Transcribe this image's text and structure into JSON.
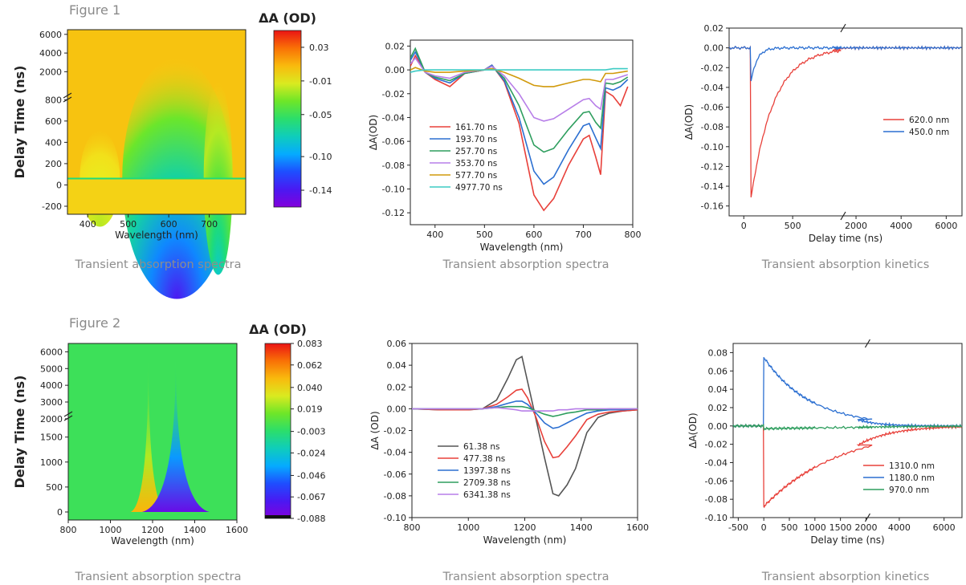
{
  "figures": [
    {
      "label": "Figure 1",
      "captions": [
        "Transient absorption spectra",
        "Transient absorption spectra",
        "Transient absorption kinetics"
      ]
    },
    {
      "label": "Figure 2",
      "captions": [
        "Transient absorption spectra",
        "Transient absorption spectra",
        "Transient absorption kinetics"
      ]
    }
  ],
  "colors": {
    "red": "#e8403a",
    "blue": "#2b6fd1",
    "green": "#2e9e5e",
    "purple": "#b77ee8",
    "gold": "#d19a0c",
    "cyan": "#3dcbc4",
    "dark": "#555555"
  },
  "chart_data": [
    {
      "type": "heatmap",
      "xlabel": "Wavelength (nm)",
      "ylabel": "Delay Time (ns)",
      "xlim": [
        350,
        790
      ],
      "xticks": [
        400,
        500,
        600,
        700
      ],
      "yticks_lower": [
        -200,
        0,
        200,
        400,
        600,
        800
      ],
      "yticks_upper": [
        2000,
        4000,
        6000
      ],
      "colorbar": {
        "title": "ΔA (OD)",
        "ticks": [
          "0.03",
          "-0.01",
          "-0.05",
          "-0.10",
          "-0.14"
        ],
        "range": [
          -0.16,
          0.05
        ]
      },
      "bleach_features": [
        {
          "center_nm": 620,
          "min_dA": -0.14
        },
        {
          "center_nm": 720,
          "min_dA": -0.08
        },
        {
          "center_nm": 430,
          "min_dA": -0.02
        }
      ]
    },
    {
      "type": "line",
      "xlabel": "Wavelength (nm)",
      "ylabel": "ΔA(OD)",
      "xlim": [
        350,
        800
      ],
      "ylim": [
        -0.13,
        0.025
      ],
      "xticks": [
        400,
        500,
        600,
        700,
        800
      ],
      "yticks": [
        "0.02",
        "0.00",
        "-0.02",
        "-0.04",
        "-0.06",
        "-0.08",
        "-0.10",
        "-0.12"
      ],
      "legend": "bottom-left",
      "x": [
        350,
        360,
        380,
        400,
        430,
        460,
        500,
        515,
        540,
        570,
        600,
        620,
        640,
        670,
        700,
        712,
        725,
        735,
        745,
        760,
        775,
        790
      ],
      "series": [
        {
          "name": "161.70 ns",
          "color": "red",
          "values": [
            0.003,
            0.012,
            -0.002,
            -0.008,
            -0.014,
            -0.003,
            0.0,
            0.004,
            -0.01,
            -0.045,
            -0.105,
            -0.118,
            -0.108,
            -0.08,
            -0.058,
            -0.055,
            -0.073,
            -0.088,
            -0.018,
            -0.022,
            -0.03,
            -0.014
          ]
        },
        {
          "name": "193.70 ns",
          "color": "blue",
          "values": [
            0.008,
            0.015,
            -0.002,
            -0.007,
            -0.011,
            -0.003,
            0.0,
            0.004,
            -0.009,
            -0.04,
            -0.085,
            -0.096,
            -0.09,
            -0.067,
            -0.047,
            -0.045,
            -0.057,
            -0.066,
            -0.015,
            -0.017,
            -0.014,
            -0.008
          ]
        },
        {
          "name": "257.70 ns",
          "color": "green",
          "values": [
            0.01,
            0.018,
            -0.002,
            -0.006,
            -0.009,
            -0.003,
            0.0,
            0.003,
            -0.007,
            -0.03,
            -0.063,
            -0.069,
            -0.066,
            -0.05,
            -0.036,
            -0.035,
            -0.044,
            -0.049,
            -0.011,
            -0.012,
            -0.01,
            -0.006
          ]
        },
        {
          "name": "353.70 ns",
          "color": "purple",
          "values": [
            0.005,
            0.01,
            -0.002,
            -0.005,
            -0.007,
            -0.002,
            0.0,
            0.003,
            -0.005,
            -0.02,
            -0.04,
            -0.043,
            -0.041,
            -0.033,
            -0.025,
            -0.024,
            -0.03,
            -0.033,
            -0.008,
            -0.008,
            -0.006,
            -0.004
          ]
        },
        {
          "name": "577.70 ns",
          "color": "gold",
          "values": [
            0.0,
            0.002,
            -0.001,
            -0.002,
            -0.002,
            -0.001,
            0.0,
            0.001,
            -0.002,
            -0.007,
            -0.013,
            -0.014,
            -0.014,
            -0.011,
            -0.008,
            -0.008,
            -0.009,
            -0.01,
            -0.003,
            -0.003,
            -0.002,
            -0.001
          ]
        },
        {
          "name": "4977.70 ns",
          "color": "cyan",
          "values": [
            -0.002,
            -0.001,
            0.0,
            0.0,
            0.0,
            0.0,
            0.0,
            0.0,
            0.0,
            0.0,
            0.0,
            0.0,
            0.0,
            0.0,
            0.0,
            0.0,
            0.0,
            0.0,
            0.0,
            0.001,
            0.001,
            0.001
          ]
        }
      ]
    },
    {
      "type": "line",
      "xlabel": "Delay time (ns)",
      "ylabel": "ΔA(OD)",
      "ylim": [
        -0.17,
        0.02
      ],
      "xbreak": [
        1000,
        1500
      ],
      "xticks": [
        "0",
        "500",
        "2000",
        "4000",
        "6000"
      ],
      "yticks": [
        "0.02",
        "0.00",
        "-0.02",
        "-0.04",
        "-0.06",
        "-0.08",
        "-0.10",
        "-0.12",
        "-0.14",
        "-0.16"
      ],
      "legend": "right",
      "series": [
        {
          "name": "620.0 nm",
          "color": "red",
          "onset_ns": 70,
          "baseline": 0.0,
          "peak": -0.155,
          "decay_tau_ns": 230
        },
        {
          "name": "450.0 nm",
          "color": "blue",
          "onset_ns": 70,
          "baseline": 0.0,
          "peak": -0.037,
          "decay_tau_ns": 60
        }
      ]
    },
    {
      "type": "heatmap",
      "xlabel": "Wavelength (nm)",
      "ylabel": "Delay Time (ns)",
      "xlim": [
        800,
        1600
      ],
      "xticks": [
        800,
        1000,
        1200,
        1400,
        1600
      ],
      "yticks_lower": [
        0,
        500,
        1000,
        1500
      ],
      "yticks_upper": [
        2000,
        3000,
        4000,
        5000,
        6000
      ],
      "colorbar": {
        "title": "ΔA (OD)",
        "ticks": [
          "0.083",
          "0.062",
          "0.040",
          "0.019",
          "-0.003",
          "-0.024",
          "-0.046",
          "-0.067",
          "-0.088"
        ],
        "range": [
          -0.088,
          0.083
        ]
      },
      "bleach_features": [
        {
          "center_nm": 1180,
          "max_dA": 0.05
        },
        {
          "center_nm": 1310,
          "min_dA": -0.08
        }
      ]
    },
    {
      "type": "line",
      "xlabel": "Wavelength (nm)",
      "ylabel": "ΔA (OD)",
      "xlim": [
        800,
        1600
      ],
      "ylim": [
        -0.1,
        0.06
      ],
      "xticks": [
        800,
        1000,
        1200,
        1400,
        1600
      ],
      "yticks": [
        "0.06",
        "0.04",
        "0.02",
        "0.00",
        "-0.02",
        "-0.04",
        "-0.06",
        "-0.08",
        "-0.10"
      ],
      "legend": "bottom-left",
      "x": [
        800,
        900,
        1000,
        1050,
        1100,
        1140,
        1170,
        1190,
        1210,
        1240,
        1270,
        1300,
        1320,
        1350,
        1380,
        1420,
        1460,
        1500,
        1550,
        1600
      ],
      "series": [
        {
          "name": "61.38 ns",
          "color": "dark",
          "values": [
            0.0,
            -0.001,
            -0.001,
            0.0,
            0.008,
            0.028,
            0.045,
            0.048,
            0.025,
            -0.01,
            -0.045,
            -0.078,
            -0.08,
            -0.07,
            -0.055,
            -0.022,
            -0.008,
            -0.004,
            -0.002,
            -0.001
          ]
        },
        {
          "name": "477.38 ns",
          "color": "red",
          "values": [
            0.0,
            -0.001,
            -0.001,
            0.0,
            0.004,
            0.011,
            0.017,
            0.018,
            0.01,
            -0.008,
            -0.03,
            -0.045,
            -0.044,
            -0.035,
            -0.025,
            -0.01,
            -0.005,
            -0.003,
            -0.002,
            -0.001
          ]
        },
        {
          "name": "1397.38 ns",
          "color": "blue",
          "values": [
            0.0,
            0.0,
            0.0,
            0.0,
            0.002,
            0.005,
            0.007,
            0.007,
            0.004,
            -0.004,
            -0.013,
            -0.018,
            -0.017,
            -0.013,
            -0.009,
            -0.004,
            -0.002,
            -0.001,
            -0.001,
            0.0
          ]
        },
        {
          "name": "2709.38 ns",
          "color": "green",
          "values": [
            0.0,
            0.0,
            0.0,
            0.0,
            0.001,
            0.002,
            0.002,
            0.002,
            0.001,
            -0.002,
            -0.005,
            -0.007,
            -0.006,
            -0.004,
            -0.003,
            -0.001,
            -0.001,
            0.0,
            0.0,
            0.0
          ]
        },
        {
          "name": "6341.38 ns",
          "color": "purple",
          "values": [
            0.0,
            0.0,
            0.0,
            0.0,
            0.001,
            0.0,
            -0.001,
            -0.002,
            -0.002,
            -0.002,
            -0.002,
            -0.002,
            -0.001,
            -0.001,
            0.0,
            0.0,
            0.0,
            0.0,
            0.0,
            0.0
          ]
        }
      ]
    },
    {
      "type": "line",
      "xlabel": "Delay time (ns)",
      "ylabel": "ΔA(OD)",
      "ylim": [
        -0.1,
        0.09
      ],
      "xbreak": [
        2000,
        3000
      ],
      "xticks": [
        "-500",
        "0",
        "500",
        "1000",
        "1500",
        "2000",
        "4000",
        "6000"
      ],
      "yticks": [
        "0.08",
        "0.06",
        "0.04",
        "0.02",
        "0.00",
        "-0.02",
        "-0.04",
        "-0.06",
        "-0.08",
        "-0.10"
      ],
      "legend": "bottom-right",
      "series": [
        {
          "name": "1310.0 nm",
          "color": "red",
          "onset_ns": 0,
          "baseline": 0.0,
          "peak": -0.088,
          "decay_tau_ns": 1500
        },
        {
          "name": "1180.0 nm",
          "color": "blue",
          "onset_ns": 0,
          "baseline": 0.0,
          "peak": 0.075,
          "decay_tau_ns": 900
        },
        {
          "name": "970.0 nm",
          "color": "green",
          "onset_ns": 0,
          "baseline": 0.0,
          "peak": -0.003,
          "decay_tau_ns": 3000
        }
      ]
    }
  ]
}
